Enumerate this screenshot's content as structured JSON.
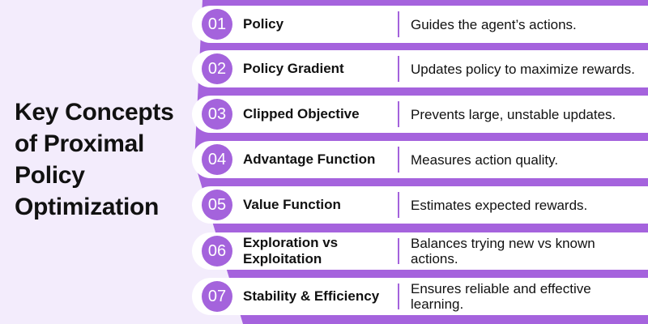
{
  "title": "Key Concepts of Proximal Policy Optimization",
  "colors": {
    "accent": "#a563dd",
    "background": "#f3ecfc",
    "card": "#ffffff"
  },
  "items": [
    {
      "number": "01",
      "name": "Policy",
      "description": "Guides the agent’s actions."
    },
    {
      "number": "02",
      "name": "Policy Gradient",
      "description": "Updates policy to maximize rewards."
    },
    {
      "number": "03",
      "name": "Clipped Objective",
      "description": "Prevents large, unstable updates."
    },
    {
      "number": "04",
      "name": "Advantage Function",
      "description": "Measures action quality."
    },
    {
      "number": "05",
      "name": "Value Function",
      "description": "Estimates expected rewards."
    },
    {
      "number": "06",
      "name": "Exploration vs Exploitation",
      "description": "Balances trying new vs known actions."
    },
    {
      "number": "07",
      "name": "Stability & Efficiency",
      "description": "Ensures reliable and effective learning."
    }
  ]
}
